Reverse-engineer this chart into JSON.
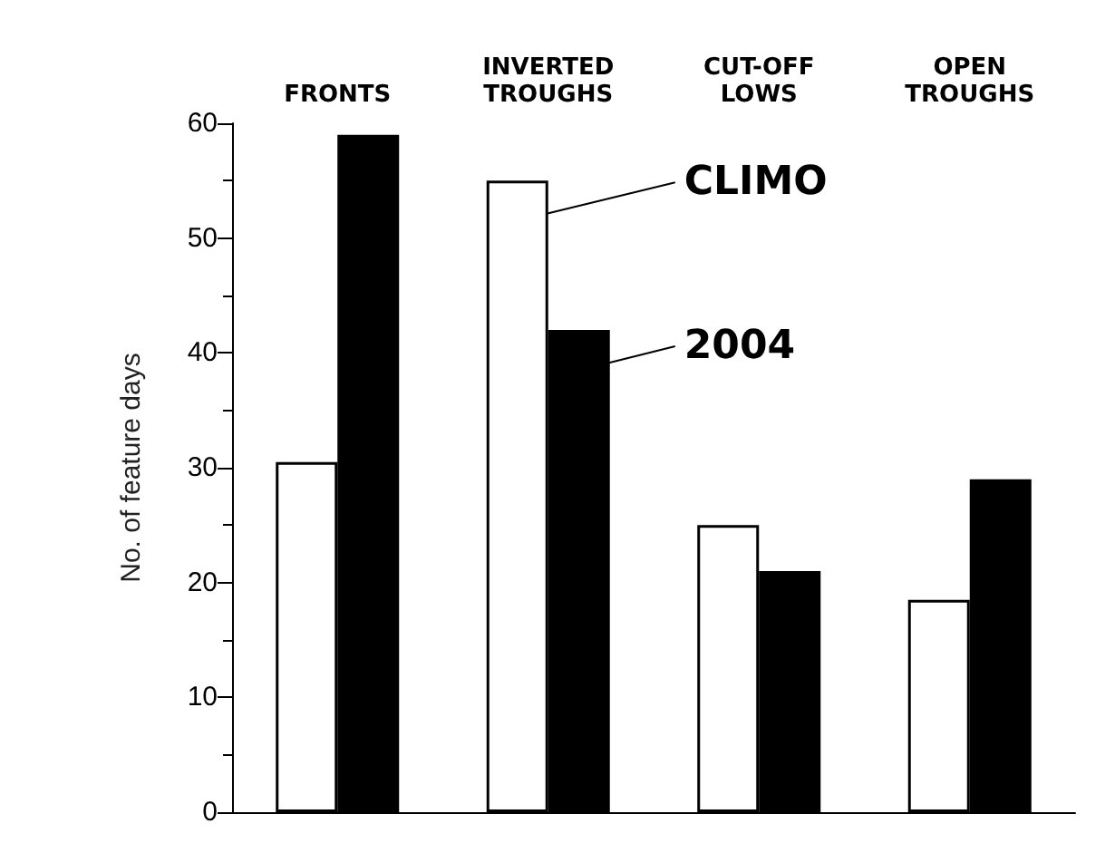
{
  "chart_data": {
    "type": "bar",
    "ylabel": "No. of feature days",
    "categories": [
      "FRONTS",
      "INVERTED\nTROUGHS",
      "CUT-OFF\nLOWS",
      "OPEN\nTROUGHS"
    ],
    "series": [
      {
        "name": "CLIMO",
        "color": "#ffffff",
        "values": [
          30.5,
          55,
          25,
          18.5
        ]
      },
      {
        "name": "2004",
        "color": "#000000",
        "values": [
          59,
          42,
          21,
          29
        ]
      }
    ],
    "ylim": [
      0,
      60
    ],
    "yticks": [
      0,
      10,
      20,
      30,
      40,
      50,
      60
    ],
    "grid": false,
    "legend": "top right"
  }
}
